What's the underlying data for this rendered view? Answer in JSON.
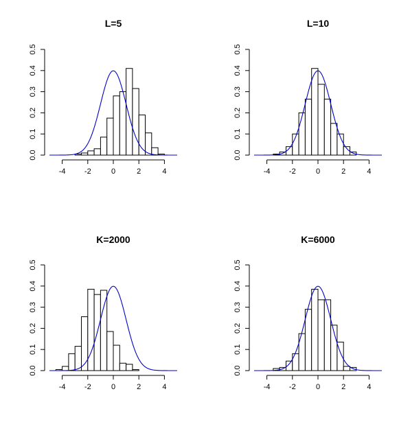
{
  "style": {
    "curve_color": "#0000cc",
    "bar_fill": "#ffffff",
    "bar_stroke": "#000000"
  },
  "chart_data": [
    {
      "type": "histogram",
      "title": "L=5",
      "xlim": [
        -5,
        5
      ],
      "ylim": [
        0,
        0.5
      ],
      "x_ticks": [
        -4,
        -2,
        0,
        2,
        4
      ],
      "y_ticks": [
        0.0,
        0.1,
        0.2,
        0.3,
        0.4,
        0.5
      ],
      "x_tick_labels": [
        "-4",
        "-2",
        "0",
        "2",
        "4"
      ],
      "y_tick_labels": [
        "0.0",
        "0.1",
        "0.2",
        "0.3",
        "0.4",
        "0.5"
      ],
      "bin_edges": [
        -3,
        -2.5,
        -2,
        -1.5,
        -1,
        -0.5,
        0,
        0.5,
        1,
        1.5,
        2,
        2.5,
        3,
        3.5,
        4
      ],
      "density": [
        0.005,
        0.01,
        0.02,
        0.03,
        0.085,
        0.175,
        0.28,
        0.3,
        0.41,
        0.315,
        0.19,
        0.105,
        0.035,
        0.005
      ],
      "overlay": {
        "name": "N(0,1) density",
        "mean": 0,
        "sd": 1
      }
    },
    {
      "type": "histogram",
      "title": "L=10",
      "xlim": [
        -5,
        5
      ],
      "ylim": [
        0,
        0.5
      ],
      "x_ticks": [
        -4,
        -2,
        0,
        2,
        4
      ],
      "y_ticks": [
        0.0,
        0.1,
        0.2,
        0.3,
        0.4,
        0.5
      ],
      "x_tick_labels": [
        "-4",
        "-2",
        "0",
        "2",
        "4"
      ],
      "y_tick_labels": [
        "0.0",
        "0.1",
        "0.2",
        "0.3",
        "0.4",
        "0.5"
      ],
      "bin_edges": [
        -3.5,
        -3,
        -2.5,
        -2,
        -1.5,
        -1,
        -0.5,
        0,
        0.5,
        1,
        1.5,
        2,
        2.5,
        3
      ],
      "density": [
        0.005,
        0.015,
        0.04,
        0.1,
        0.2,
        0.265,
        0.41,
        0.335,
        0.265,
        0.15,
        0.1,
        0.04,
        0.015
      ],
      "overlay": {
        "name": "N(0,1) density",
        "mean": 0,
        "sd": 1
      }
    },
    {
      "type": "histogram",
      "title": "K=2000",
      "xlim": [
        -5,
        5
      ],
      "ylim": [
        0,
        0.5
      ],
      "x_ticks": [
        -4,
        -2,
        0,
        2,
        4
      ],
      "y_ticks": [
        0.0,
        0.1,
        0.2,
        0.3,
        0.4,
        0.5
      ],
      "x_tick_labels": [
        "-4",
        "-2",
        "0",
        "2",
        "4"
      ],
      "y_tick_labels": [
        "0.0",
        "0.1",
        "0.2",
        "0.3",
        "0.4",
        "0.5"
      ],
      "bin_edges": [
        -4.5,
        -4,
        -3.5,
        -3,
        -2.5,
        -2,
        -1.5,
        -1,
        -0.5,
        0,
        0.5,
        1,
        1.5,
        2
      ],
      "density": [
        0.005,
        0.02,
        0.08,
        0.115,
        0.255,
        0.385,
        0.36,
        0.38,
        0.185,
        0.12,
        0.035,
        0.03,
        0.005
      ],
      "overlay": {
        "name": "N(0,1) density",
        "mean": 0,
        "sd": 1
      }
    },
    {
      "type": "histogram",
      "title": "K=6000",
      "xlim": [
        -5,
        5
      ],
      "ylim": [
        0,
        0.5
      ],
      "x_ticks": [
        -4,
        -2,
        0,
        2,
        4
      ],
      "y_ticks": [
        0.0,
        0.1,
        0.2,
        0.3,
        0.4,
        0.5
      ],
      "x_tick_labels": [
        "-4",
        "-2",
        "0",
        "2",
        "4"
      ],
      "y_tick_labels": [
        "0.0",
        "0.1",
        "0.2",
        "0.3",
        "0.4",
        "0.5"
      ],
      "bin_edges": [
        -3.5,
        -3,
        -2.5,
        -2,
        -1.5,
        -1,
        -0.5,
        0,
        0.5,
        1,
        1.5,
        2,
        2.5,
        3
      ],
      "density": [
        0.01,
        0.015,
        0.045,
        0.08,
        0.175,
        0.29,
        0.385,
        0.335,
        0.335,
        0.215,
        0.135,
        0.02,
        0.015
      ],
      "overlay": {
        "name": "N(0,1) density",
        "mean": 0,
        "sd": 1
      }
    }
  ]
}
